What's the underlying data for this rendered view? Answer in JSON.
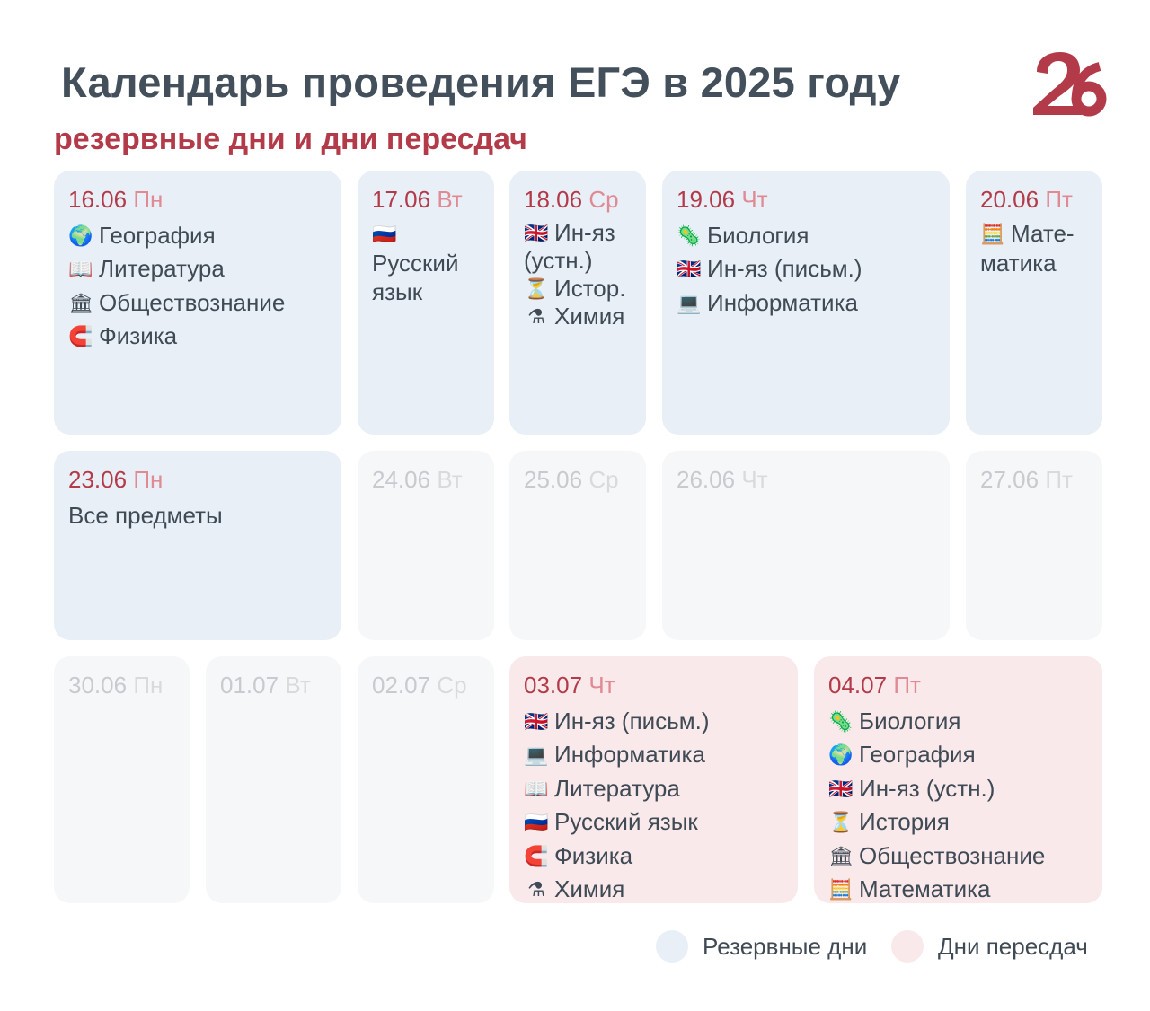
{
  "title": "Календарь проведения ЕГЭ в 2025 году",
  "subtitle": "резервные дни и дни пересдач",
  "logo_text": "26",
  "colors": {
    "accent": "#b33a48",
    "reserve": "#e8eff6",
    "retake": "#f9e9eb",
    "empty": "#f6f7f8",
    "text": "#43505c"
  },
  "days": {
    "d1606": {
      "date": "16.06",
      "weekday": "Пн",
      "subjects": [
        {
          "icon": "globe-icon",
          "glyph": "🌍",
          "name": "География"
        },
        {
          "icon": "book-icon",
          "glyph": "📖",
          "name": "Литература"
        },
        {
          "icon": "classical-building-icon",
          "glyph": "🏛",
          "name": "Обществознание"
        },
        {
          "icon": "magnet-icon",
          "glyph": "🧲",
          "name": "Физика"
        }
      ]
    },
    "d1706": {
      "date": "17.06",
      "weekday": "Вт",
      "subjects": [
        {
          "icon": "russia-flag-icon",
          "glyph": "🇷🇺",
          "name": "Русский язык"
        }
      ]
    },
    "d1806": {
      "date": "18.06",
      "weekday": "Ср",
      "subjects": [
        {
          "icon": "uk-flag-icon",
          "glyph": "🇬🇧",
          "name": "Ин-яз (устн.)"
        },
        {
          "icon": "hourglass-icon",
          "glyph": "⏳",
          "name": "Истор."
        },
        {
          "icon": "flask-icon",
          "glyph": "⚗",
          "name": "Химия"
        }
      ]
    },
    "d1906": {
      "date": "19.06",
      "weekday": "Чт",
      "subjects": [
        {
          "icon": "microbe-icon",
          "glyph": "🦠",
          "name": "Биология"
        },
        {
          "icon": "uk-flag-icon",
          "glyph": "🇬🇧",
          "name": "Ин-яз (письм.)"
        },
        {
          "icon": "laptop-icon",
          "glyph": "💻",
          "name": "Информатика"
        }
      ]
    },
    "d2006": {
      "date": "20.06",
      "weekday": "Пт",
      "subjects": [
        {
          "icon": "abacus-icon",
          "glyph": "🧮",
          "name": "Мате-матика"
        }
      ]
    },
    "d2306": {
      "date": "23.06",
      "weekday": "Пн",
      "note": "Все предметы"
    },
    "d2406": {
      "date": "24.06",
      "weekday": "Вт"
    },
    "d2506": {
      "date": "25.06",
      "weekday": "Ср"
    },
    "d2606": {
      "date": "26.06",
      "weekday": "Чт"
    },
    "d2706": {
      "date": "27.06",
      "weekday": "Пт"
    },
    "d3006": {
      "date": "30.06",
      "weekday": "Пн"
    },
    "d0107": {
      "date": "01.07",
      "weekday": "Вт"
    },
    "d0207": {
      "date": "02.07",
      "weekday": "Ср"
    },
    "d0307": {
      "date": "03.07",
      "weekday": "Чт",
      "subjects": [
        {
          "icon": "uk-flag-icon",
          "glyph": "🇬🇧",
          "name": "Ин-яз (письм.)"
        },
        {
          "icon": "laptop-icon",
          "glyph": "💻",
          "name": "Информатика"
        },
        {
          "icon": "book-icon",
          "glyph": "📖",
          "name": "Литература"
        },
        {
          "icon": "russia-flag-icon",
          "glyph": "🇷🇺",
          "name": "Русский язык"
        },
        {
          "icon": "magnet-icon",
          "glyph": "🧲",
          "name": "Физика"
        },
        {
          "icon": "flask-icon",
          "glyph": "⚗",
          "name": "Химия"
        }
      ]
    },
    "d0407": {
      "date": "04.07",
      "weekday": "Пт",
      "subjects": [
        {
          "icon": "microbe-icon",
          "glyph": "🦠",
          "name": "Биология"
        },
        {
          "icon": "globe-icon",
          "glyph": "🌍",
          "name": "География"
        },
        {
          "icon": "uk-flag-icon",
          "glyph": "🇬🇧",
          "name": "Ин-яз (устн.)"
        },
        {
          "icon": "hourglass-icon",
          "glyph": "⏳",
          "name": "История"
        },
        {
          "icon": "classical-building-icon",
          "glyph": "🏛",
          "name": "Обществознание"
        },
        {
          "icon": "abacus-icon",
          "glyph": "🧮",
          "name": "Математика"
        }
      ]
    }
  },
  "legend": {
    "reserve_label": "Резервные дни",
    "retake_label": "Дни пересдач"
  }
}
